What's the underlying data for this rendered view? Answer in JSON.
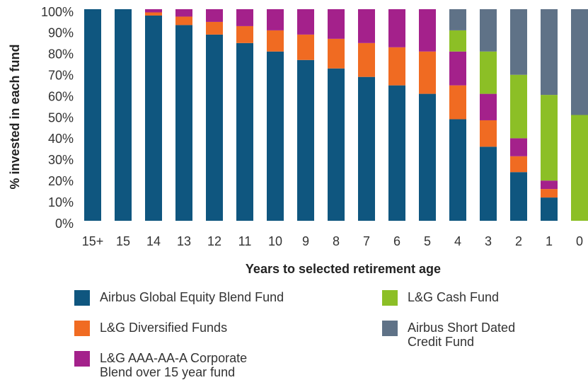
{
  "chart_data": {
    "type": "stacked_bar",
    "xlabel": "Years to selected retirement age",
    "ylabel": "% invested in each fund",
    "categories": [
      "15+",
      "15",
      "14",
      "13",
      "12",
      "11",
      "10",
      "9",
      "8",
      "7",
      "6",
      "5",
      "4",
      "3",
      "2",
      "1",
      "0"
    ],
    "series": [
      {
        "name": "Airbus Global Equity Blend Fund",
        "color": "#0f567f",
        "values": [
          100,
          100,
          97,
          92.5,
          88,
          84,
          80,
          76,
          72,
          68,
          64,
          60,
          48,
          35,
          23,
          11,
          0
        ]
      },
      {
        "name": "L&G Diversified Funds",
        "color": "#f06b22",
        "values": [
          0,
          0,
          1.5,
          4,
          6,
          8,
          10,
          12,
          14,
          16,
          18,
          20,
          16,
          12.5,
          7.5,
          4,
          0
        ]
      },
      {
        "name": "L&G AAA-AA-A Corporate Blend over 15 year fund",
        "color": "#a4218b",
        "values": [
          0,
          0,
          1.5,
          3.5,
          6,
          8,
          10,
          12,
          14,
          16,
          18,
          20,
          16,
          12.5,
          8.5,
          4,
          0
        ]
      },
      {
        "name": "L&G Cash Fund",
        "color": "#8cbf26",
        "values": [
          0,
          0,
          0,
          0,
          0,
          0,
          0,
          0,
          0,
          0,
          0,
          0,
          10,
          20,
          30,
          40.5,
          50
        ]
      },
      {
        "name": "Airbus Short Dated Credit Fund",
        "color": "#5f7287",
        "values": [
          0,
          0,
          0,
          0,
          0,
          0,
          0,
          0,
          0,
          0,
          0,
          0,
          10,
          20,
          31,
          40.5,
          50
        ]
      }
    ],
    "ylim": [
      0,
      100
    ],
    "yticks": [
      {
        "value": 0,
        "label": "0%"
      },
      {
        "value": 10,
        "label": "10%"
      },
      {
        "value": 20,
        "label": "20%"
      },
      {
        "value": 30,
        "label": "30%"
      },
      {
        "value": 40,
        "label": "40%"
      },
      {
        "value": 50,
        "label": "50%"
      },
      {
        "value": 60,
        "label": "60%"
      },
      {
        "value": 70,
        "label": "70%"
      },
      {
        "value": 80,
        "label": "80%"
      },
      {
        "value": 90,
        "label": "90%"
      },
      {
        "value": 100,
        "label": "100%"
      }
    ],
    "grid": false
  }
}
